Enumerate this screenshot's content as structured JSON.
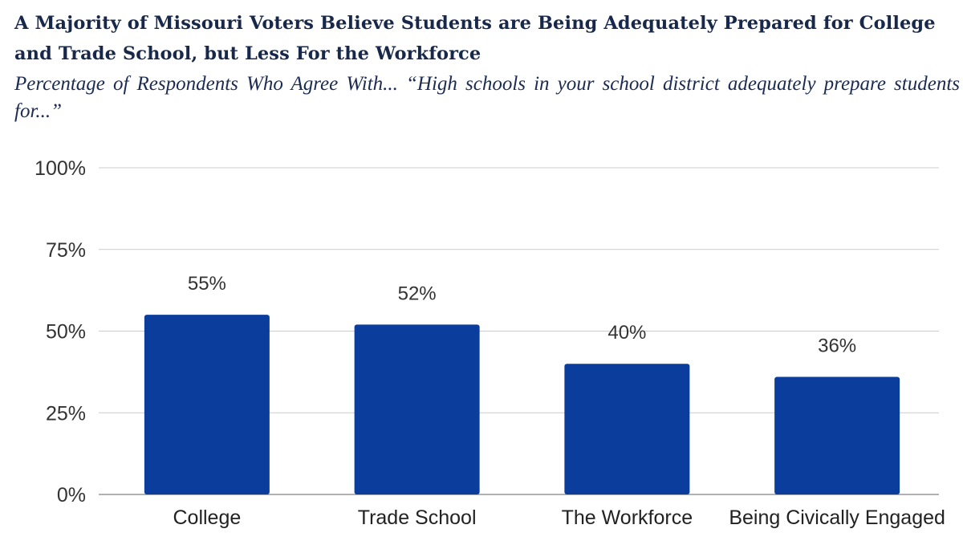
{
  "title": "A Majority of Missouri Voters Believe Students are Being Adequately Prepared for College and Trade School, but Less For the Workforce",
  "subtitle": "Percentage of Respondents Who Agree With... “High schools in your school district adequately prepare students for...”",
  "colors": {
    "bar": "#0b3d9c",
    "grid": "#cccccc",
    "text": "#18284a"
  },
  "chart_data": {
    "type": "bar",
    "title": "A Majority of Missouri Voters Believe Students are Being Adequately Prepared for College and Trade School, but Less For the Workforce",
    "subtitle": "Percentage of Respondents Who Agree With... “High schools in your school district adequately prepare students for...”",
    "categories": [
      "College",
      "Trade School",
      "The Workforce",
      "Being Civically Engaged"
    ],
    "values": [
      55,
      52,
      40,
      36
    ],
    "data_labels": [
      "55%",
      "52%",
      "40%",
      "36%"
    ],
    "ylim": [
      0,
      100
    ],
    "yticks": [
      0,
      25,
      50,
      75,
      100
    ],
    "ytick_labels": [
      "0%",
      "25%",
      "50%",
      "75%",
      "100%"
    ],
    "xlabel": "",
    "ylabel": "",
    "grid": true,
    "legend": "none"
  }
}
